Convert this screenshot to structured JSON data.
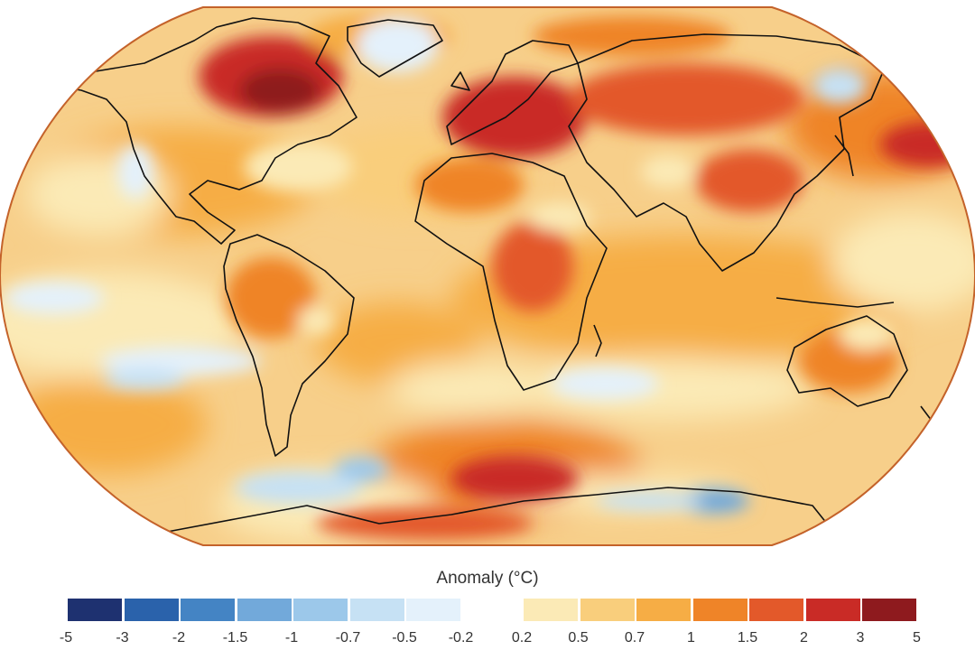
{
  "legend": {
    "title": "Anomaly (°C)",
    "cold_bins": [
      {
        "from": "-5",
        "to": "-3",
        "color": "#1e3170"
      },
      {
        "from": "-3",
        "to": "-2",
        "color": "#2a62ab"
      },
      {
        "from": "-2",
        "to": "-1.5",
        "color": "#4484c4"
      },
      {
        "from": "-1.5",
        "to": "-1",
        "color": "#72a9da"
      },
      {
        "from": "-1",
        "to": "-0.7",
        "color": "#9cc8ea"
      },
      {
        "from": "-0.7",
        "to": "-0.5",
        "color": "#c6e1f4"
      },
      {
        "from": "-0.5",
        "to": "-0.2",
        "color": "#e4f1fb"
      }
    ],
    "warm_bins": [
      {
        "from": "0.2",
        "to": "0.5",
        "color": "#fbeab6"
      },
      {
        "from": "0.5",
        "to": "0.7",
        "color": "#f9ce7c"
      },
      {
        "from": "0.7",
        "to": "1",
        "color": "#f6ad45"
      },
      {
        "from": "1",
        "to": "1.5",
        "color": "#ef8428"
      },
      {
        "from": "1.5",
        "to": "2",
        "color": "#e3592a"
      },
      {
        "from": "2",
        "to": "3",
        "color": "#c92b26"
      },
      {
        "from": "3",
        "to": "5",
        "color": "#8e1a1e"
      }
    ],
    "cold_ticks": [
      "-5",
      "-3",
      "-2",
      "-1.5",
      "-1",
      "-0.7",
      "-0.5",
      "-0.2"
    ],
    "warm_ticks": [
      "0.2",
      "0.5",
      "0.7",
      "1",
      "1.5",
      "2",
      "3",
      "5"
    ]
  },
  "map": {
    "projection": "Robinson",
    "ocean_base_color": "#f7cf8a",
    "coastline_color": "#111111"
  }
}
